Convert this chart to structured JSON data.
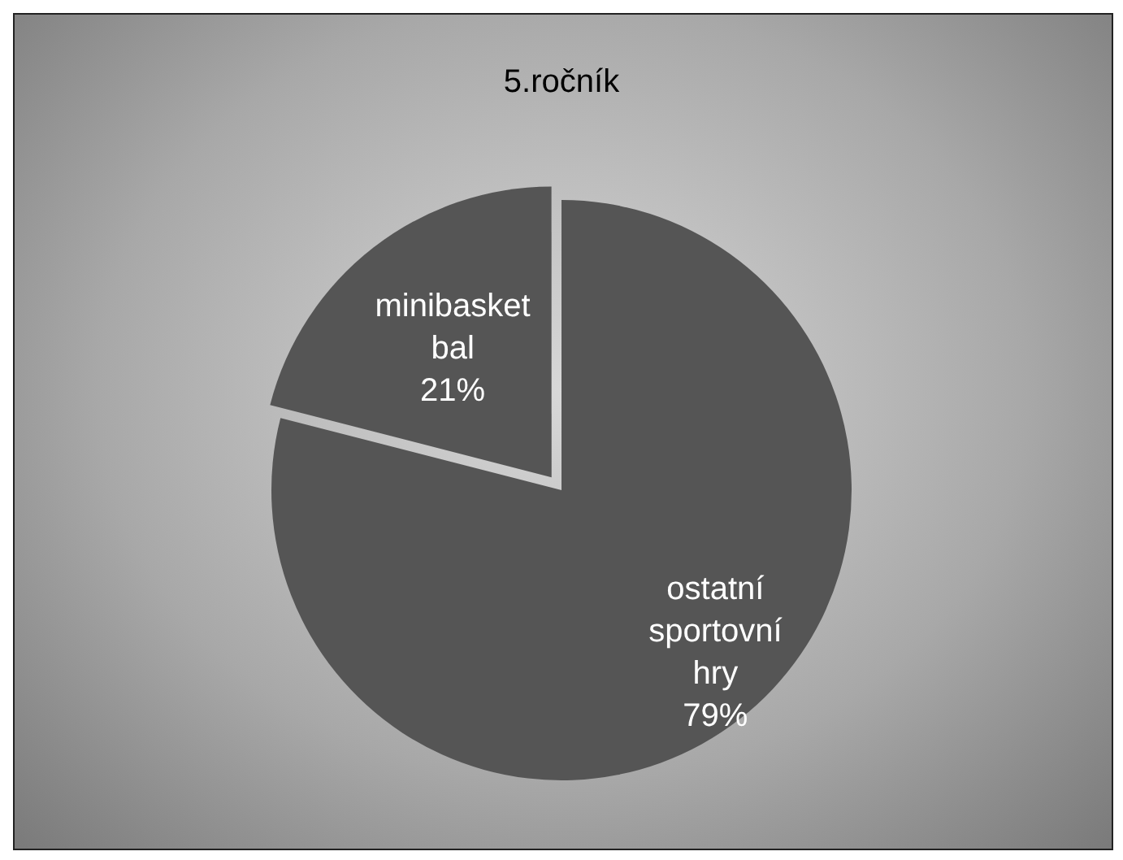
{
  "chart_data": {
    "type": "pie",
    "title": "5.ročník",
    "categories": [
      "ostatní sportovní hry",
      "minibasketbal"
    ],
    "values": [
      79,
      21
    ],
    "colors": [
      "#555555",
      "#555555"
    ],
    "value_labels": [
      "79%",
      "21%"
    ],
    "legend": false
  }
}
